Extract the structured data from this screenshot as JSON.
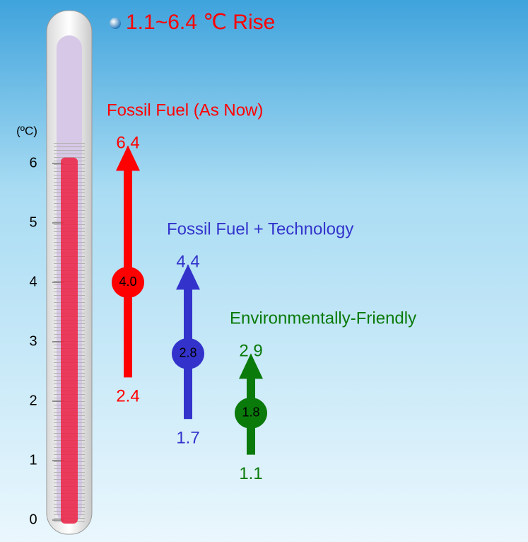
{
  "chart_data": {
    "type": "range",
    "title": "1.1~6.4 ℃ Rise",
    "y_label": "(ºC)",
    "ylim": [
      0,
      7
    ],
    "yticks": [
      0,
      1,
      2,
      3,
      4,
      5,
      6
    ],
    "thermometer_level": 6.1,
    "series": [
      {
        "name": "Fossil Fuel (As Now)",
        "color": "#ff0000",
        "values": [
          2.4,
          4,
          6.4
        ],
        "value_labels": [
          "2.4",
          "4.0",
          "6.4"
        ]
      },
      {
        "name": "Fossil Fuel + Technology",
        "color": "#3333cc",
        "values": [
          1.7,
          2.8,
          4.4
        ],
        "value_labels": [
          "1.7",
          "2.8",
          "4.4"
        ]
      },
      {
        "name": "Environmentally-Friendly",
        "color": "#0a7a0a",
        "values": [
          1.1,
          1.8,
          2.9
        ],
        "value_labels": [
          "1.1",
          "1.8",
          "2.9"
        ]
      }
    ]
  }
}
